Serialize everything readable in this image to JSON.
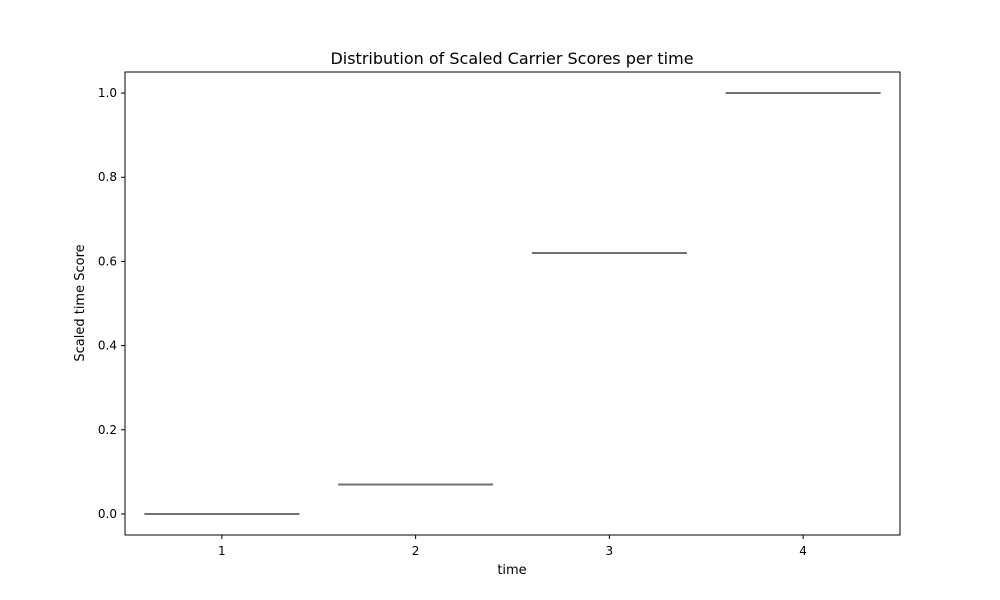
{
  "chart_data": {
    "type": "box",
    "title": "Distribution of Scaled Carrier Scores per time",
    "xlabel": "time",
    "ylabel": "Scaled time Score",
    "categories": [
      "1",
      "2",
      "3",
      "4"
    ],
    "values": [
      0.0,
      0.07,
      0.62,
      1.0
    ],
    "ylim": [
      -0.05,
      1.05
    ],
    "yticks": [
      0.0,
      0.2,
      0.4,
      0.6,
      0.8,
      1.0
    ],
    "ytick_labels": [
      "0.0",
      "0.2",
      "0.4",
      "0.6",
      "0.8",
      "1.0"
    ],
    "grid": false,
    "legend": "none",
    "colors": {
      "box_line": "#707070",
      "axes": "#000000"
    }
  }
}
